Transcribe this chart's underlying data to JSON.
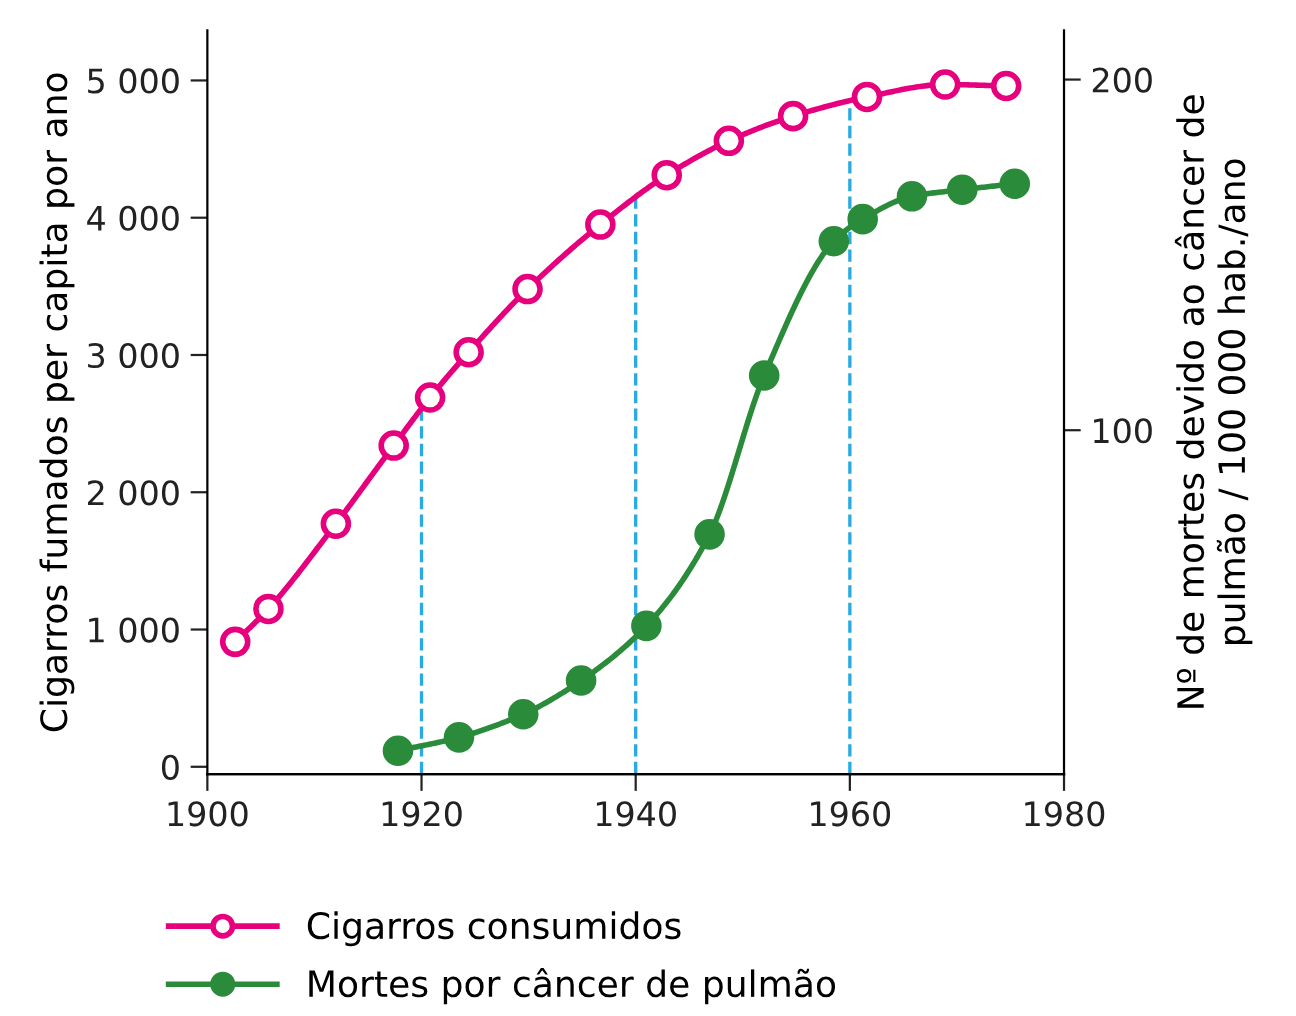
{
  "chart_data": {
    "type": "line",
    "xlabel": null,
    "ylabel": "Cigarros fumados per capita por ano",
    "y2label": "Nº de mortes devido ao câncer de\npulmão / 100 000 hab./ano",
    "series": [
      {
        "name": "Cigarros consumidos",
        "color": "#e6007e",
        "marker": "circle",
        "x": [
          1902.6,
          1905.7,
          1912.0,
          1917.4,
          1920.8,
          1924.4,
          1929.9,
          1936.7,
          1942.9,
          1948.7,
          1954.7,
          1961.6,
          1968.9,
          1974.6
        ],
        "values": [
          910,
          1150,
          1770,
          2340,
          2690,
          3020,
          3480,
          3950,
          4310,
          4560,
          4740,
          4880,
          4970,
          4960
        ]
      },
      {
        "name": "Mortes por câncer de pulmão",
        "color": "#2a8c3a",
        "marker": "circle",
        "axis": "y2",
        "x": [
          1917.8,
          1923.5,
          1929.5,
          1934.9,
          1941.0,
          1946.9,
          1952.0,
          1958.5,
          1961.2,
          1965.8,
          1970.5,
          1975.4
        ],
        "values": [
          8.6,
          12.4,
          19,
          28.6,
          44.2,
          70.3,
          115.6,
          153.9,
          160.2,
          166.7,
          168.6,
          170.3
        ]
      }
    ],
    "xlim": [
      1900,
      1980
    ],
    "xticks": [
      1900,
      1920,
      1940,
      1960,
      1980
    ],
    "ylim": [
      -54,
      5364
    ],
    "yticks": [
      {
        "value": 0,
        "label": "0"
      },
      {
        "value": 1000,
        "label": "1 000"
      },
      {
        "value": 2000,
        "label": "2 000"
      },
      {
        "value": 3000,
        "label": "3 000"
      },
      {
        "value": 4000,
        "label": "4 000"
      },
      {
        "value": 5000,
        "label": "5 000"
      }
    ],
    "y2lim": [
      1.9,
      214
    ],
    "y2ticks": [
      100,
      200
    ],
    "ref_lines": [
      {
        "axis": "x",
        "value": 1920,
        "label": null,
        "color": "#29abe2",
        "line_style": "dashed"
      },
      {
        "axis": "x",
        "value": 1940,
        "label": null,
        "color": "#29abe2",
        "line_style": "dashed"
      },
      {
        "axis": "x",
        "value": 1960,
        "label": null,
        "color": "#29abe2",
        "line_style": "dashed"
      }
    ],
    "grid": false,
    "legend": "bottom",
    "line_style": "solid"
  }
}
